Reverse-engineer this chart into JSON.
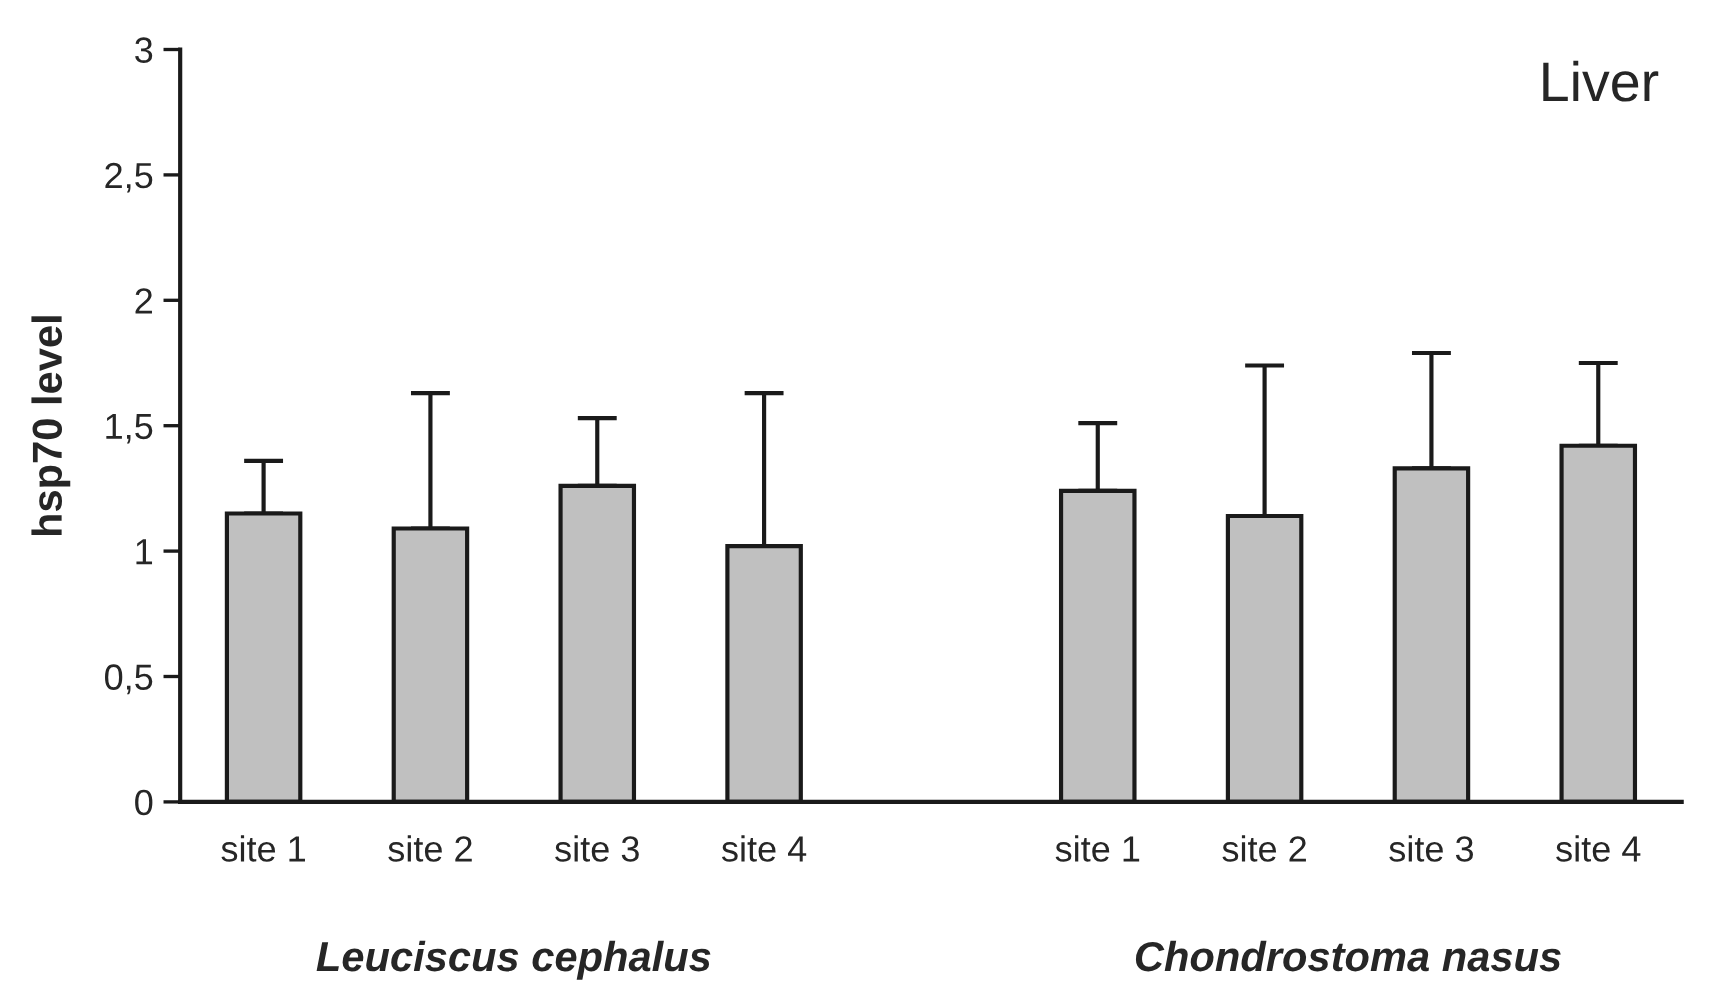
{
  "chart_data": {
    "type": "bar",
    "title": "Liver",
    "ylabel": "hsp70 level",
    "categories": [
      "site 1",
      "site 2",
      "site 3",
      "site 4",
      null,
      "site 1",
      "site 2",
      "site 3",
      "site 4"
    ],
    "values": [
      1.15,
      1.09,
      1.26,
      1.02,
      null,
      1.24,
      1.14,
      1.33,
      1.42
    ],
    "errors": [
      [
        1.15,
        1.36
      ],
      [
        1.09,
        1.63
      ],
      [
        1.26,
        1.53
      ],
      [
        1.02,
        1.63
      ],
      null,
      [
        1.24,
        1.51
      ],
      [
        1.14,
        1.74
      ],
      [
        1.33,
        1.79
      ],
      [
        1.42,
        1.75
      ]
    ],
    "color": "#c0c0c0",
    "ylim": [
      0,
      3
    ],
    "yticks": [
      0,
      {
        "value": 0.5,
        "label": "0,5"
      },
      1,
      {
        "value": 1.5,
        "label": "1,5"
      },
      2,
      {
        "value": 2.5,
        "label": "2,5"
      },
      3
    ],
    "annotations": [
      "Leuciscus cephalus",
      "Chondrostoma nasus"
    ],
    "grid": false,
    "legend": false
  }
}
